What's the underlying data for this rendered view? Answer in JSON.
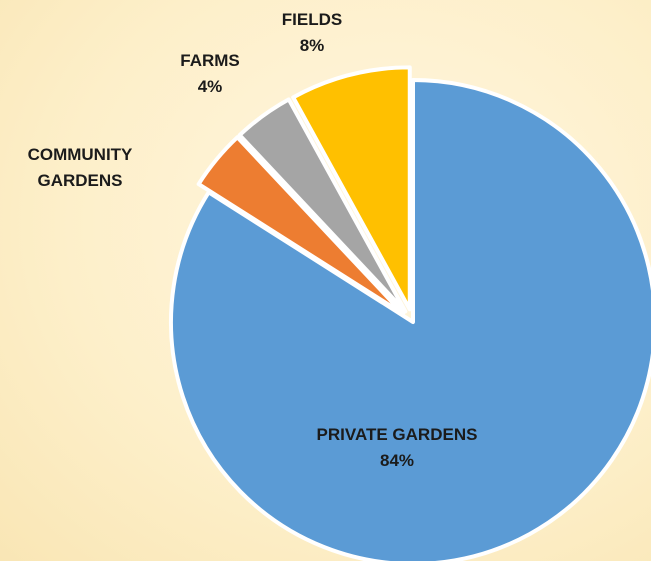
{
  "chart_data": {
    "type": "pie",
    "title": "",
    "slices": [
      {
        "label": "PRIVATE GARDENS",
        "label_lines": [
          "PRIVATE GARDENS"
        ],
        "value": 84,
        "value_text": "84%",
        "color": "#5b9bd5",
        "exploded": false
      },
      {
        "label": "COMMUNITY GARDENS",
        "label_lines": [
          "COMMUNITY",
          "GARDENS"
        ],
        "value": 4,
        "value_text": "",
        "color": "#ed7d31",
        "exploded": true
      },
      {
        "label": "FARMS",
        "label_lines": [
          "FARMS"
        ],
        "value": 4,
        "value_text": "4%",
        "color": "#a5a5a5",
        "exploded": true
      },
      {
        "label": "FIELDS",
        "label_lines": [
          "FIELDS"
        ],
        "value": 8,
        "value_text": "8%",
        "color": "#ffc000",
        "exploded": true
      }
    ],
    "start_angle_deg": 0,
    "direction": "clockwise",
    "legend": "none",
    "label_position": "outside-except-largest"
  }
}
